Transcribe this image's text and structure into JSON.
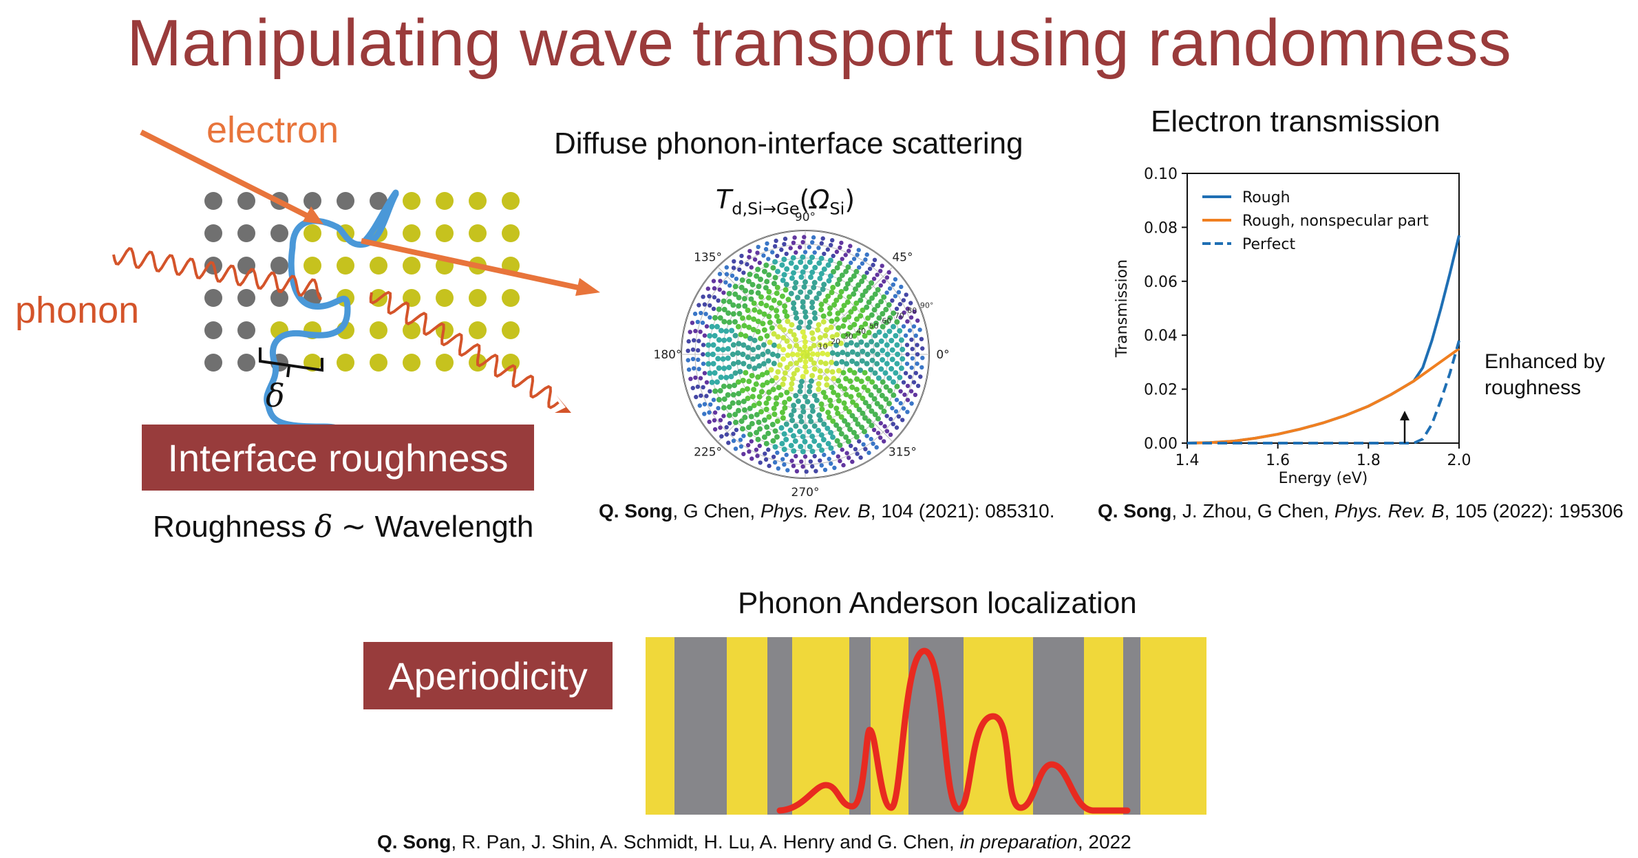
{
  "slide": {
    "title": "Manipulating wave transport using randomness",
    "colors": {
      "title": "#9a3b3b",
      "label_box": "#983c3c",
      "electron": "#e8743b",
      "phonon": "#d4542a",
      "interface": "#4a98d8"
    }
  },
  "left_panel": {
    "electron_label": "electron",
    "phonon_label": "phonon",
    "delta_symbol": "δ",
    "box_label": "Interface roughness",
    "caption_pre": "Roughness ",
    "caption_symbol": "δ",
    "caption_post": " ∼ Wavelength"
  },
  "middle_panel": {
    "heading": "Diffuse phonon-interface scattering",
    "polar_title": "T d,Si→Ge (Ω Si)",
    "angle_labels": [
      "90°",
      "45°",
      "0°",
      "315°",
      "270°",
      "225°",
      "180°",
      "135°"
    ],
    "radial_labels": [
      "10",
      "20",
      "30",
      "40",
      "50",
      "60",
      "70",
      "80",
      "90°"
    ],
    "citation": {
      "author": "Q. Song",
      "rest1": ", G Chen, ",
      "journal": "Phys. Rev. B",
      "rest2": ", 104 (2021): 085310."
    }
  },
  "right_panel": {
    "heading": "Electron transmission",
    "annotation_line1": "Enhanced by",
    "annotation_line2": "roughness",
    "citation": {
      "author": "Q. Song",
      "rest1": ", J. Zhou, G Chen, ",
      "journal": "Phys. Rev. B",
      "rest2": ", 105 (2022): 195306"
    }
  },
  "bottom_panel": {
    "heading": "Phonon Anderson localization",
    "box_label": "Aperiodicity",
    "citation": {
      "author": "Q. Song",
      "rest1": ", R. Pan, J. Shin, A. Schmidt, H. Lu, A. Henry and G. Chen, ",
      "journal": "in preparation",
      "rest2": ", 2022"
    }
  },
  "chart_data": {
    "type": "line",
    "title": "",
    "xlabel": "Energy (eV)",
    "ylabel": "Transmission",
    "xlim": [
      1.4,
      2.0
    ],
    "ylim": [
      0.0,
      0.1
    ],
    "xticks": [
      "1.4",
      "1.6",
      "1.8",
      "2.0"
    ],
    "yticks": [
      "0.00",
      "0.02",
      "0.04",
      "0.06",
      "0.08",
      "0.10"
    ],
    "grid": false,
    "legend_position": "top-left",
    "series": [
      {
        "name": "Rough",
        "color": "#1f6fb4",
        "dash": "solid",
        "x": [
          1.4,
          1.45,
          1.5,
          1.55,
          1.6,
          1.65,
          1.7,
          1.75,
          1.8,
          1.85,
          1.9,
          1.92,
          1.94,
          1.96,
          1.98,
          2.0
        ],
        "y": [
          0.0,
          0.0002,
          0.0007,
          0.0018,
          0.0033,
          0.0052,
          0.0075,
          0.0103,
          0.0137,
          0.018,
          0.023,
          0.028,
          0.038,
          0.05,
          0.063,
          0.077
        ]
      },
      {
        "name": "Rough, nonspecular part",
        "color": "#f07f20",
        "dash": "solid",
        "x": [
          1.4,
          1.45,
          1.5,
          1.55,
          1.6,
          1.65,
          1.7,
          1.75,
          1.8,
          1.85,
          1.9,
          1.95,
          2.0
        ],
        "y": [
          0.0,
          0.0002,
          0.0007,
          0.0018,
          0.0033,
          0.0052,
          0.0075,
          0.0103,
          0.0137,
          0.018,
          0.023,
          0.029,
          0.035
        ]
      },
      {
        "name": "Perfect",
        "color": "#1f6fb4",
        "dash": "dashed",
        "x": [
          1.4,
          1.5,
          1.6,
          1.7,
          1.8,
          1.88,
          1.9,
          1.92,
          1.94,
          1.96,
          1.98,
          2.0
        ],
        "y": [
          0.0,
          0.0,
          0.0,
          0.0,
          0.0,
          0.0,
          0.0,
          0.0015,
          0.007,
          0.016,
          0.026,
          0.038
        ]
      }
    ],
    "annotation_arrow": {
      "x": 1.88,
      "y_from": 0.0,
      "y_to": 0.012
    }
  }
}
